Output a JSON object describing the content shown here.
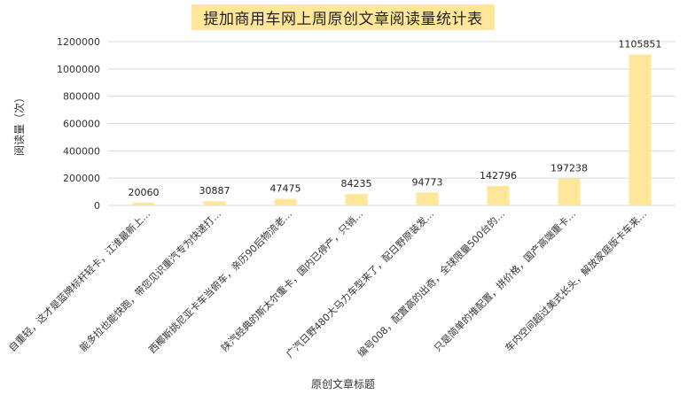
{
  "chart_data": {
    "type": "bar",
    "title": "提加商用车网上周原创文章阅读量统计表",
    "xlabel": "原创文章标题",
    "ylabel": "阅读量（次）",
    "ylim": [
      0,
      1200000
    ],
    "yticks": [
      "0",
      "200000",
      "400000",
      "600000",
      "800000",
      "1000000",
      "1200000"
    ],
    "ytick_values": [
      0,
      200000,
      400000,
      600000,
      800000,
      1000000,
      1200000
    ],
    "grid": true,
    "categories": [
      "自重轻，这才是蓝牌标杆轻卡，江淮最新上…",
      "能多拉也能快跑，带您见识重汽专为快递打…",
      "西椰斯挑尼亚卡车当俯车，亲历90后物流老…",
      "陕汽经典的斯太尔重卡，国内已停产，只销…",
      "广汽日野480大马力车型来了，配日野原装发…",
      "编号008，配置高的出奇，全球限量500台的…",
      "只是简单的堆配置，拼价格，国产高端重卡…",
      "车内空间超过美式长头，解放家庭版卡车来…"
    ],
    "values": [
      20060,
      30887,
      47475,
      84235,
      94773,
      142796,
      197238,
      1105851
    ],
    "data_labels": [
      "20060",
      "30887",
      "47475",
      "84235",
      "94773",
      "142796",
      "197238",
      "1105851"
    ],
    "bar_color": "#ffe699",
    "grid_color": "#d9d9d9"
  }
}
